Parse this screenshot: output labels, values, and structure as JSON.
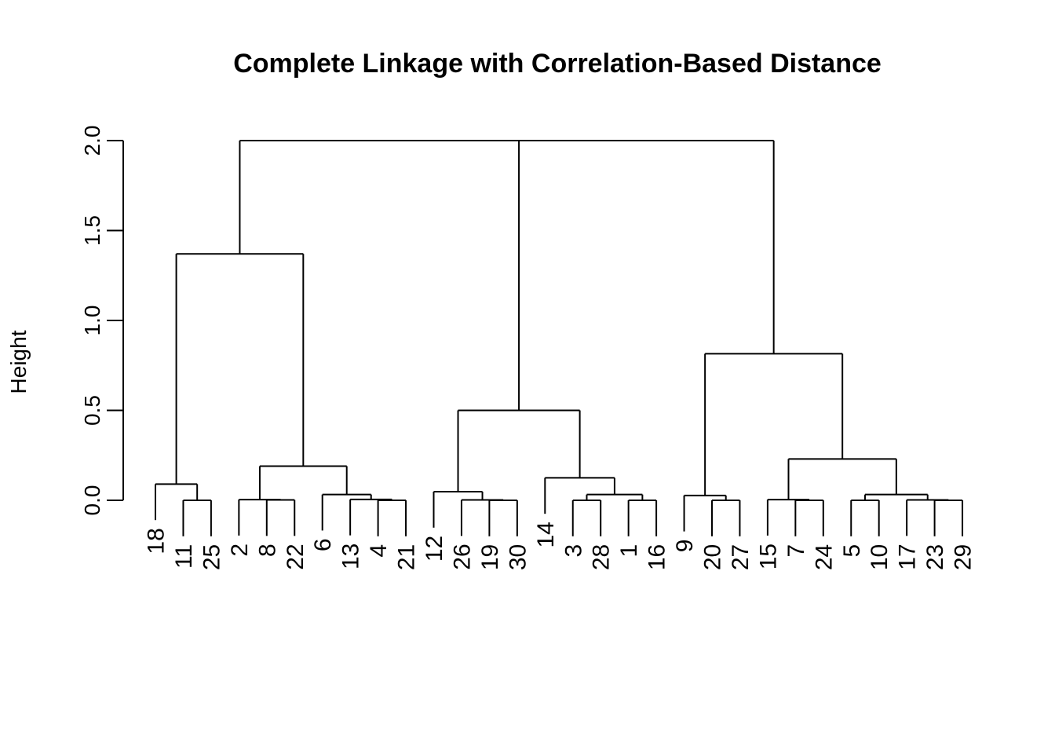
{
  "chart_data": {
    "type": "dendrogram",
    "title": "Complete Linkage with Correlation-Based Distance",
    "ylabel": "Height",
    "xlabel": "",
    "ylim": [
      0,
      2.0
    ],
    "yticks": [
      0.0,
      0.5,
      1.0,
      1.5,
      2.0
    ],
    "ytick_labels": [
      "0.0",
      "0.5",
      "1.0",
      "1.5",
      "2.0"
    ],
    "leaves": [
      "18",
      "11",
      "25",
      "2",
      "8",
      "22",
      "6",
      "13",
      "4",
      "21",
      "12",
      "26",
      "19",
      "30",
      "14",
      "3",
      "28",
      "1",
      "16",
      "9",
      "20",
      "27",
      "15",
      "7",
      "24",
      "5",
      "10",
      "17",
      "23",
      "29"
    ],
    "merges": [
      {
        "id": "n1",
        "height": 0.0,
        "left": "11",
        "right": "25"
      },
      {
        "id": "n2",
        "height": 0.09,
        "left": "18",
        "right": "n1"
      },
      {
        "id": "n3",
        "height": 0.002,
        "left": "8",
        "right": "22"
      },
      {
        "id": "n4",
        "height": 0.004,
        "left": "2",
        "right": "n3"
      },
      {
        "id": "n5",
        "height": 0.0,
        "left": "4",
        "right": "21"
      },
      {
        "id": "n6",
        "height": 0.005,
        "left": "13",
        "right": "n5"
      },
      {
        "id": "n7",
        "height": 0.032,
        "left": "6",
        "right": "n6"
      },
      {
        "id": "n8",
        "height": 0.19,
        "left": "n4",
        "right": "n7"
      },
      {
        "id": "n9",
        "height": 1.37,
        "left": "n2",
        "right": "n8"
      },
      {
        "id": "n10",
        "height": 0.0,
        "left": "19",
        "right": "30"
      },
      {
        "id": "n11",
        "height": 0.002,
        "left": "26",
        "right": "n10"
      },
      {
        "id": "n12",
        "height": 0.048,
        "left": "12",
        "right": "n11"
      },
      {
        "id": "n13",
        "height": 0.0,
        "left": "3",
        "right": "28"
      },
      {
        "id": "n14",
        "height": 0.0,
        "left": "1",
        "right": "16"
      },
      {
        "id": "n15",
        "height": 0.032,
        "left": "n13",
        "right": "n14"
      },
      {
        "id": "n16",
        "height": 0.125,
        "left": "14",
        "right": "n15"
      },
      {
        "id": "n17",
        "height": 0.5,
        "left": "n12",
        "right": "n16"
      },
      {
        "id": "n18",
        "height": 0.0,
        "left": "20",
        "right": "27"
      },
      {
        "id": "n19",
        "height": 0.027,
        "left": "9",
        "right": "n18"
      },
      {
        "id": "n20",
        "height": 0.0,
        "left": "7",
        "right": "24"
      },
      {
        "id": "n21",
        "height": 0.004,
        "left": "15",
        "right": "n20"
      },
      {
        "id": "n22",
        "height": 0.0,
        "left": "5",
        "right": "10"
      },
      {
        "id": "n23",
        "height": 0.0,
        "left": "23",
        "right": "29"
      },
      {
        "id": "n24",
        "height": 0.002,
        "left": "17",
        "right": "n23"
      },
      {
        "id": "n25",
        "height": 0.032,
        "left": "n22",
        "right": "n24"
      },
      {
        "id": "n26",
        "height": 0.23,
        "left": "n21",
        "right": "n25"
      },
      {
        "id": "n27",
        "height": 0.815,
        "left": "n19",
        "right": "n26"
      },
      {
        "id": "n28",
        "height": 2.0,
        "left": "n9",
        "right": "n17"
      },
      {
        "id": "n29",
        "height": 2.0,
        "left": "n28",
        "right": "n27"
      }
    ]
  }
}
